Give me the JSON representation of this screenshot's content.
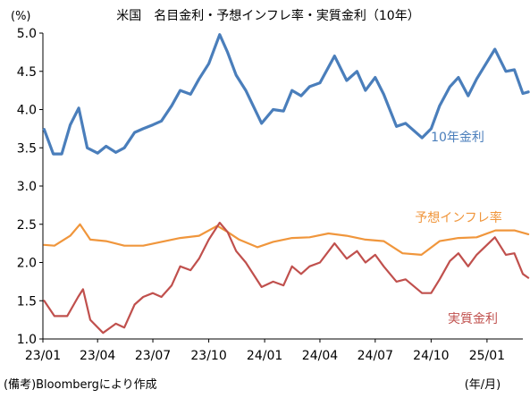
{
  "chart_data": {
    "type": "line",
    "title": "米国　名目金利・予想インフレ率・実質金利（10年）",
    "unit_label": "(%)",
    "xlabel": "(年/月)",
    "source": "(備考)Bloombergにより作成",
    "ylim": [
      1.0,
      5.0
    ],
    "yticks": [
      "1.0",
      "1.5",
      "2.0",
      "2.5",
      "3.0",
      "3.5",
      "4.0",
      "4.5",
      "5.0"
    ],
    "xlim": [
      "2023-01",
      "2025-03"
    ],
    "xticks": [
      {
        "date": "2023-01",
        "label": "23/01"
      },
      {
        "date": "2023-04",
        "label": "23/04"
      },
      {
        "date": "2023-07",
        "label": "23/07"
      },
      {
        "date": "2023-10",
        "label": "23/10"
      },
      {
        "date": "2024-01",
        "label": "24/01"
      },
      {
        "date": "2024-04",
        "label": "24/04"
      },
      {
        "date": "2024-07",
        "label": "24/07"
      },
      {
        "date": "2024-10",
        "label": "24/10"
      },
      {
        "date": "2025-01",
        "label": "25/01"
      }
    ],
    "series": [
      {
        "name": "10年金利",
        "color": "#4a7ebb",
        "points": [
          [
            "2023-01-03",
            3.74
          ],
          [
            "2023-01-18",
            3.42
          ],
          [
            "2023-02-01",
            3.42
          ],
          [
            "2023-02-15",
            3.8
          ],
          [
            "2023-03-01",
            4.02
          ],
          [
            "2023-03-15",
            3.5
          ],
          [
            "2023-04-01",
            3.43
          ],
          [
            "2023-04-15",
            3.52
          ],
          [
            "2023-05-01",
            3.44
          ],
          [
            "2023-05-15",
            3.5
          ],
          [
            "2023-06-01",
            3.7
          ],
          [
            "2023-06-15",
            3.75
          ],
          [
            "2023-07-01",
            3.8
          ],
          [
            "2023-07-15",
            3.85
          ],
          [
            "2023-08-01",
            4.05
          ],
          [
            "2023-08-15",
            4.25
          ],
          [
            "2023-09-01",
            4.2
          ],
          [
            "2023-09-15",
            4.4
          ],
          [
            "2023-10-01",
            4.6
          ],
          [
            "2023-10-19",
            4.98
          ],
          [
            "2023-11-01",
            4.75
          ],
          [
            "2023-11-15",
            4.45
          ],
          [
            "2023-12-01",
            4.25
          ],
          [
            "2023-12-27",
            3.82
          ],
          [
            "2024-01-15",
            4.0
          ],
          [
            "2024-02-01",
            3.98
          ],
          [
            "2024-02-15",
            4.25
          ],
          [
            "2024-03-01",
            4.18
          ],
          [
            "2024-03-15",
            4.3
          ],
          [
            "2024-04-01",
            4.35
          ],
          [
            "2024-04-25",
            4.7
          ],
          [
            "2024-05-15",
            4.38
          ],
          [
            "2024-06-01",
            4.5
          ],
          [
            "2024-06-15",
            4.25
          ],
          [
            "2024-07-01",
            4.42
          ],
          [
            "2024-07-15",
            4.2
          ],
          [
            "2024-08-05",
            3.78
          ],
          [
            "2024-08-20",
            3.82
          ],
          [
            "2024-09-16",
            3.63
          ],
          [
            "2024-10-01",
            3.75
          ],
          [
            "2024-10-15",
            4.05
          ],
          [
            "2024-11-01",
            4.3
          ],
          [
            "2024-11-15",
            4.42
          ],
          [
            "2024-12-01",
            4.18
          ],
          [
            "2024-12-15",
            4.4
          ],
          [
            "2025-01-14",
            4.79
          ],
          [
            "2025-02-01",
            4.5
          ],
          [
            "2025-02-15",
            4.52
          ],
          [
            "2025-03-01",
            4.21
          ],
          [
            "2025-03-10",
            4.23
          ]
        ]
      },
      {
        "name": "予想インフレ率",
        "color": "#f0963c",
        "points": [
          [
            "2023-01-03",
            2.23
          ],
          [
            "2023-01-20",
            2.22
          ],
          [
            "2023-02-15",
            2.35
          ],
          [
            "2023-03-03",
            2.5
          ],
          [
            "2023-03-20",
            2.3
          ],
          [
            "2023-04-15",
            2.28
          ],
          [
            "2023-05-15",
            2.22
          ],
          [
            "2023-06-15",
            2.22
          ],
          [
            "2023-07-15",
            2.27
          ],
          [
            "2023-08-15",
            2.32
          ],
          [
            "2023-09-15",
            2.35
          ],
          [
            "2023-10-15",
            2.48
          ],
          [
            "2023-11-01",
            2.4
          ],
          [
            "2023-11-20",
            2.3
          ],
          [
            "2023-12-20",
            2.2
          ],
          [
            "2024-01-15",
            2.27
          ],
          [
            "2024-02-15",
            2.32
          ],
          [
            "2024-03-15",
            2.33
          ],
          [
            "2024-04-15",
            2.38
          ],
          [
            "2024-05-15",
            2.35
          ],
          [
            "2024-06-15",
            2.3
          ],
          [
            "2024-07-15",
            2.28
          ],
          [
            "2024-08-15",
            2.12
          ],
          [
            "2024-09-15",
            2.1
          ],
          [
            "2024-10-15",
            2.28
          ],
          [
            "2024-11-15",
            2.32
          ],
          [
            "2024-12-15",
            2.33
          ],
          [
            "2025-01-15",
            2.42
          ],
          [
            "2025-02-15",
            2.42
          ],
          [
            "2025-03-10",
            2.37
          ]
        ]
      },
      {
        "name": "実質金利",
        "color": "#c0504d",
        "points": [
          [
            "2023-01-03",
            1.5
          ],
          [
            "2023-01-20",
            1.3
          ],
          [
            "2023-02-10",
            1.3
          ],
          [
            "2023-02-28",
            1.55
          ],
          [
            "2023-03-08",
            1.65
          ],
          [
            "2023-03-20",
            1.25
          ],
          [
            "2023-04-10",
            1.08
          ],
          [
            "2023-05-01",
            1.2
          ],
          [
            "2023-05-15",
            1.15
          ],
          [
            "2023-06-01",
            1.45
          ],
          [
            "2023-06-15",
            1.55
          ],
          [
            "2023-07-01",
            1.6
          ],
          [
            "2023-07-15",
            1.55
          ],
          [
            "2023-08-01",
            1.7
          ],
          [
            "2023-08-15",
            1.95
          ],
          [
            "2023-09-01",
            1.9
          ],
          [
            "2023-09-15",
            2.05
          ],
          [
            "2023-10-01",
            2.3
          ],
          [
            "2023-10-19",
            2.52
          ],
          [
            "2023-11-01",
            2.4
          ],
          [
            "2023-11-15",
            2.15
          ],
          [
            "2023-12-01",
            2.0
          ],
          [
            "2023-12-27",
            1.68
          ],
          [
            "2024-01-15",
            1.75
          ],
          [
            "2024-02-01",
            1.7
          ],
          [
            "2024-02-15",
            1.95
          ],
          [
            "2024-03-01",
            1.85
          ],
          [
            "2024-03-15",
            1.95
          ],
          [
            "2024-04-01",
            2.0
          ],
          [
            "2024-04-25",
            2.25
          ],
          [
            "2024-05-15",
            2.05
          ],
          [
            "2024-06-01",
            2.15
          ],
          [
            "2024-06-15",
            2.0
          ],
          [
            "2024-07-01",
            2.1
          ],
          [
            "2024-07-15",
            1.95
          ],
          [
            "2024-08-05",
            1.75
          ],
          [
            "2024-08-20",
            1.78
          ],
          [
            "2024-09-16",
            1.6
          ],
          [
            "2024-10-01",
            1.6
          ],
          [
            "2024-10-15",
            1.78
          ],
          [
            "2024-11-01",
            2.02
          ],
          [
            "2024-11-15",
            2.12
          ],
          [
            "2024-12-01",
            1.95
          ],
          [
            "2024-12-15",
            2.1
          ],
          [
            "2025-01-14",
            2.33
          ],
          [
            "2025-02-01",
            2.1
          ],
          [
            "2025-02-15",
            2.12
          ],
          [
            "2025-03-01",
            1.85
          ],
          [
            "2025-03-10",
            1.8
          ]
        ]
      }
    ]
  }
}
